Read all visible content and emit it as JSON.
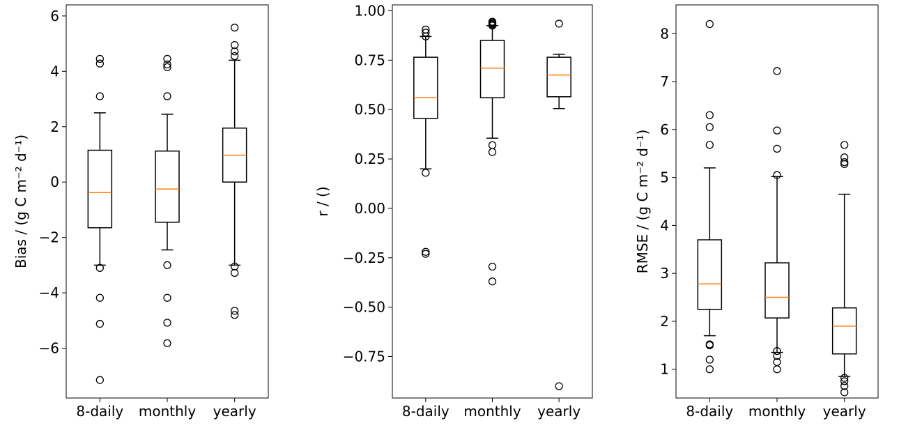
{
  "chart_data": [
    {
      "type": "box",
      "ylabel": "Bias / (g C m⁻² d⁻¹)",
      "categories": [
        "8-daily",
        "monthly",
        "yearly"
      ],
      "ylim": [
        -7.8,
        6.4
      ],
      "yticks": [
        -6,
        -4,
        -2,
        0,
        2,
        4,
        6
      ],
      "ytick_labels": [
        "−6",
        "−4",
        "−2",
        "0",
        "2",
        "4",
        "6"
      ],
      "boxes": [
        {
          "whislo": -3.0,
          "q1": -1.65,
          "med": -0.38,
          "q3": 1.15,
          "whishi": 2.5,
          "fliers": [
            4.45,
            4.28,
            3.1,
            -3.1,
            -4.18,
            -5.12,
            -7.15
          ]
        },
        {
          "whislo": -2.45,
          "q1": -1.45,
          "med": -0.25,
          "q3": 1.12,
          "whishi": 2.45,
          "fliers": [
            4.45,
            4.25,
            4.15,
            3.1,
            -3.0,
            -4.18,
            -5.08,
            -5.82
          ]
        },
        {
          "whislo": -3.0,
          "q1": 0.0,
          "med": 0.97,
          "q3": 1.95,
          "whishi": 4.4,
          "fliers": [
            5.58,
            4.95,
            4.72,
            4.55,
            -3.05,
            -3.28,
            -4.65,
            -4.8
          ]
        }
      ]
    },
    {
      "type": "box",
      "ylabel": "r / ()",
      "categories": [
        "8-daily",
        "monthly",
        "yearly"
      ],
      "ylim": [
        -0.96,
        1.03
      ],
      "yticks": [
        -0.75,
        -0.5,
        -0.25,
        0.0,
        0.25,
        0.5,
        0.75,
        1.0
      ],
      "ytick_labels": [
        "−0.75",
        "−0.50",
        "−0.25",
        "0.00",
        "0.25",
        "0.50",
        "0.75",
        "1.00"
      ],
      "boxes": [
        {
          "whislo": 0.2,
          "q1": 0.455,
          "med": 0.56,
          "q3": 0.765,
          "whishi": 0.87,
          "fliers": [
            0.905,
            0.89,
            0.87,
            0.18,
            -0.22,
            -0.23
          ]
        },
        {
          "whislo": 0.355,
          "q1": 0.56,
          "med": 0.71,
          "q3": 0.85,
          "whishi": 0.925,
          "fliers": [
            0.945,
            0.94,
            0.935,
            0.93,
            0.925,
            0.32,
            0.285,
            -0.295,
            -0.37
          ]
        },
        {
          "whislo": 0.505,
          "q1": 0.565,
          "med": 0.675,
          "q3": 0.765,
          "whishi": 0.78,
          "fliers": [
            0.935,
            -0.9
          ]
        }
      ]
    },
    {
      "type": "box",
      "ylabel": "RMSE / (g C m⁻² d⁻¹)",
      "categories": [
        "8-daily",
        "monthly",
        "yearly"
      ],
      "ylim": [
        0.4,
        8.6
      ],
      "yticks": [
        1,
        2,
        3,
        4,
        5,
        6,
        7,
        8
      ],
      "ytick_labels": [
        "1",
        "2",
        "3",
        "4",
        "5",
        "6",
        "7",
        "8"
      ],
      "boxes": [
        {
          "whislo": 1.7,
          "q1": 2.25,
          "med": 2.78,
          "q3": 3.7,
          "whishi": 5.2,
          "fliers": [
            8.2,
            6.3,
            6.05,
            5.68,
            1.52,
            1.5,
            1.2,
            1.0
          ]
        },
        {
          "whislo": 1.35,
          "q1": 2.07,
          "med": 2.5,
          "q3": 3.22,
          "whishi": 5.02,
          "fliers": [
            7.22,
            5.98,
            5.6,
            5.05,
            1.38,
            1.28,
            1.15,
            1.0
          ]
        },
        {
          "whislo": 0.85,
          "q1": 1.32,
          "med": 1.9,
          "q3": 2.28,
          "whishi": 4.65,
          "fliers": [
            5.68,
            5.42,
            5.32,
            5.28,
            0.82,
            0.75,
            0.65,
            0.52
          ]
        }
      ]
    }
  ],
  "colors": {
    "median": "#ff7f0e",
    "box": "#000000",
    "axes": "#000000"
  }
}
